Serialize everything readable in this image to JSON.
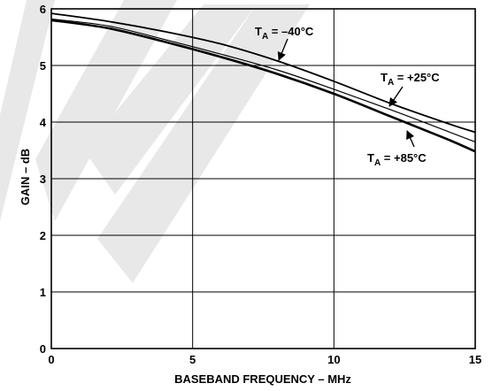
{
  "chart_data": {
    "type": "line",
    "title": "",
    "xlabel": "BASEBAND FREQUENCY – MHz",
    "ylabel": "GAIN – dB",
    "xlim": [
      0,
      15
    ],
    "ylim": [
      0,
      6
    ],
    "x_ticks": [
      "0",
      "5",
      "10",
      "15"
    ],
    "y_ticks": [
      "0",
      "1",
      "2",
      "3",
      "4",
      "5",
      "6"
    ],
    "grid": true,
    "series": [
      {
        "name": "T_A = –40°C",
        "x": [
          0,
          2,
          4,
          6,
          8,
          10,
          12,
          14,
          15
        ],
        "y": [
          5.92,
          5.78,
          5.6,
          5.38,
          5.08,
          4.72,
          4.33,
          3.98,
          3.82
        ]
      },
      {
        "name": "T_A = +25°C",
        "x": [
          0,
          2,
          4,
          6,
          8,
          10,
          12,
          14,
          15
        ],
        "y": [
          5.82,
          5.7,
          5.46,
          5.2,
          4.92,
          4.58,
          4.22,
          3.84,
          3.65
        ]
      },
      {
        "name": "T_A = +85°C",
        "x": [
          0,
          2,
          4,
          6,
          8,
          10,
          12,
          14,
          15
        ],
        "y": [
          5.8,
          5.66,
          5.42,
          5.15,
          4.85,
          4.5,
          4.1,
          3.7,
          3.48
        ]
      }
    ],
    "annotations": [
      {
        "main": "T",
        "sub": "A",
        "rest": " = –40°C",
        "series": 0
      },
      {
        "main": "T",
        "sub": "A",
        "rest": " = +25°C",
        "series": 1
      },
      {
        "main": "T",
        "sub": "A",
        "rest": " = +85°C",
        "series": 2
      }
    ]
  }
}
